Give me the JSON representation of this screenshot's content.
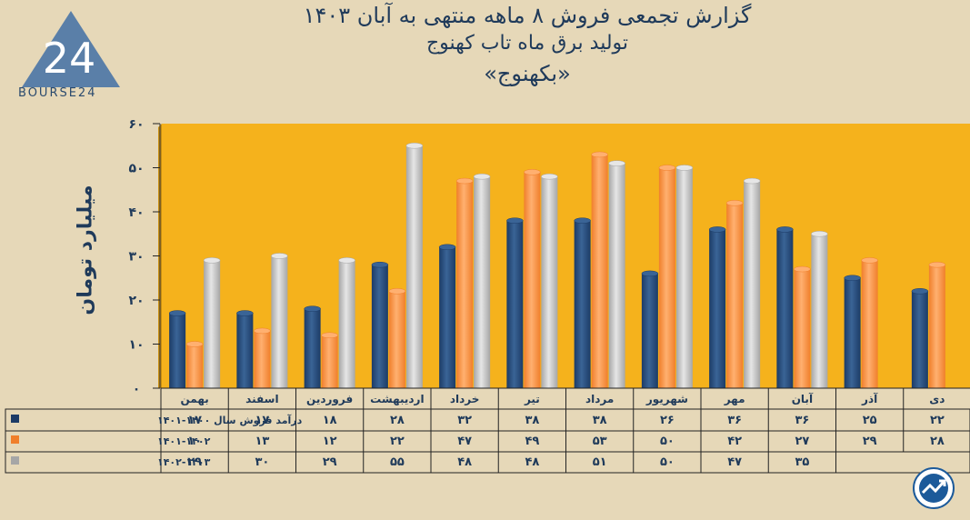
{
  "header": {
    "title_line1": "گزارش تجمعی فروش ۸ ماهه منتهی به آبان ۱۴۰۳",
    "title_line2": "تولید برق ماه تاب کهنوج",
    "title_line3": "«بکهنوج»"
  },
  "logo": {
    "text": "BOURSE24",
    "number": "24"
  },
  "colors": {
    "background": "#e6d8b8",
    "plot": "#f5b21c",
    "series1": "#1c3b66",
    "series2": "#f07f2b",
    "series3": "#a6a6a6"
  },
  "chart_data": {
    "type": "bar",
    "ylabel": "میلیارد تومان",
    "ylim": [
      0,
      60
    ],
    "yticks": [
      "۰",
      "۱۰",
      "۲۰",
      "۳۰",
      "۴۰",
      "۵۰",
      "۶۰"
    ],
    "categories": [
      "بهمن",
      "اسفند",
      "فروردین",
      "اردیبهشت",
      "خرداد",
      "تیر",
      "مرداد",
      "شهریور",
      "مهر",
      "آبان",
      "آذر",
      "دی"
    ],
    "series": [
      {
        "name": "درآمد فروش سال ۱۴۰۰-۱۴۰۱",
        "values": [
          17,
          17,
          18,
          28,
          32,
          38,
          38,
          26,
          36,
          36,
          25,
          22
        ],
        "labels": [
          "۱۷",
          "۱۷",
          "۱۸",
          "۲۸",
          "۳۲",
          "۳۸",
          "۳۸",
          "۲۶",
          "۳۶",
          "۳۶",
          "۲۵",
          "۲۲"
        ]
      },
      {
        "name": "۱۴۰۱-۱۴۰۲",
        "values": [
          10,
          13,
          12,
          22,
          47,
          49,
          53,
          50,
          42,
          27,
          29,
          28
        ],
        "labels": [
          "۱۰",
          "۱۳",
          "۱۲",
          "۲۲",
          "۴۷",
          "۴۹",
          "۵۳",
          "۵۰",
          "۴۲",
          "۲۷",
          "۲۹",
          "۲۸"
        ]
      },
      {
        "name": "۱۴۰۲-۱۴۰۳",
        "values": [
          29,
          30,
          29,
          55,
          48,
          48,
          51,
          50,
          47,
          35,
          null,
          null
        ],
        "labels": [
          "۲۹",
          "۳۰",
          "۲۹",
          "۵۵",
          "۴۸",
          "۴۸",
          "۵۱",
          "۵۰",
          "۴۷",
          "۳۵",
          "",
          ""
        ]
      }
    ]
  }
}
